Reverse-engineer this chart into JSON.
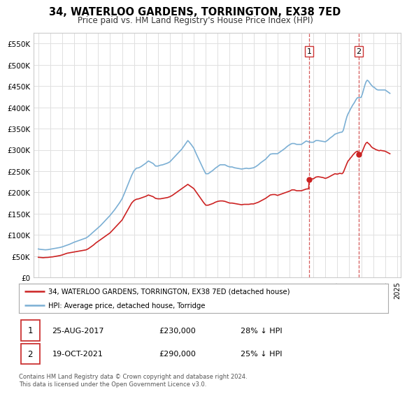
{
  "title": "34, WATERLOO GARDENS, TORRINGTON, EX38 7ED",
  "subtitle": "Price paid vs. HM Land Registry's House Price Index (HPI)",
  "hpi_color": "#7bafd4",
  "price_color": "#cc2222",
  "vline_color": "#cc3333",
  "background_color": "#ffffff",
  "grid_color": "#e0e0e0",
  "ylim": [
    0,
    575000
  ],
  "yticks": [
    0,
    50000,
    100000,
    150000,
    200000,
    250000,
    300000,
    350000,
    400000,
    450000,
    500000,
    550000
  ],
  "ytick_labels": [
    "£0",
    "£50K",
    "£100K",
    "£150K",
    "£200K",
    "£250K",
    "£300K",
    "£350K",
    "£400K",
    "£450K",
    "£500K",
    "£550K"
  ],
  "legend_line1": "34, WATERLOO GARDENS, TORRINGTON, EX38 7ED (detached house)",
  "legend_line2": "HPI: Average price, detached house, Torridge",
  "sale1_label": "1",
  "sale1_date": "25-AUG-2017",
  "sale1_price": "£230,000",
  "sale1_pct": "28% ↓ HPI",
  "sale1_x": 2017.65,
  "sale1_y": 230000,
  "sale2_label": "2",
  "sale2_date": "19-OCT-2021",
  "sale2_price": "£290,000",
  "sale2_pct": "25% ↓ HPI",
  "sale2_x": 2021.8,
  "sale2_y": 290000,
  "copyright_text": "Contains HM Land Registry data © Crown copyright and database right 2024.\nThis data is licensed under the Open Government Licence v3.0.",
  "xlim_left": 1994.6,
  "xlim_right": 2025.3,
  "xtick_years": [
    1995,
    1996,
    1997,
    1998,
    1999,
    2000,
    2001,
    2002,
    2003,
    2004,
    2005,
    2006,
    2007,
    2008,
    2009,
    2010,
    2011,
    2012,
    2013,
    2014,
    2015,
    2016,
    2017,
    2018,
    2019,
    2020,
    2021,
    2022,
    2023,
    2024,
    2025
  ],
  "hpi_data": [
    [
      1995.0,
      67000
    ],
    [
      1995.2,
      66000
    ],
    [
      1995.4,
      65500
    ],
    [
      1995.6,
      65000
    ],
    [
      1995.8,
      65500
    ],
    [
      1996.0,
      66500
    ],
    [
      1996.2,
      67500
    ],
    [
      1996.4,
      68500
    ],
    [
      1996.6,
      69500
    ],
    [
      1996.8,
      70500
    ],
    [
      1997.0,
      72000
    ],
    [
      1997.2,
      74000
    ],
    [
      1997.4,
      76000
    ],
    [
      1997.6,
      78000
    ],
    [
      1997.8,
      80500
    ],
    [
      1998.0,
      83000
    ],
    [
      1998.2,
      85000
    ],
    [
      1998.4,
      87000
    ],
    [
      1998.6,
      89000
    ],
    [
      1998.8,
      91000
    ],
    [
      1999.0,
      93000
    ],
    [
      1999.2,
      97000
    ],
    [
      1999.4,
      102000
    ],
    [
      1999.6,
      107000
    ],
    [
      1999.8,
      112000
    ],
    [
      2000.0,
      117000
    ],
    [
      2000.2,
      122000
    ],
    [
      2000.4,
      128000
    ],
    [
      2000.6,
      134000
    ],
    [
      2000.8,
      140000
    ],
    [
      2001.0,
      146000
    ],
    [
      2001.2,
      153000
    ],
    [
      2001.4,
      160000
    ],
    [
      2001.6,
      168000
    ],
    [
      2001.8,
      176000
    ],
    [
      2002.0,
      185000
    ],
    [
      2002.2,
      198000
    ],
    [
      2002.4,
      212000
    ],
    [
      2002.6,
      226000
    ],
    [
      2002.8,
      240000
    ],
    [
      2003.0,
      251000
    ],
    [
      2003.2,
      257000
    ],
    [
      2003.4,
      258000
    ],
    [
      2003.6,
      261000
    ],
    [
      2003.8,
      265000
    ],
    [
      2004.0,
      269000
    ],
    [
      2004.2,
      274000
    ],
    [
      2004.4,
      271000
    ],
    [
      2004.6,
      268000
    ],
    [
      2004.8,
      262000
    ],
    [
      2005.0,
      262000
    ],
    [
      2005.2,
      264000
    ],
    [
      2005.4,
      265000
    ],
    [
      2005.6,
      267000
    ],
    [
      2005.8,
      269000
    ],
    [
      2006.0,
      272000
    ],
    [
      2006.2,
      278000
    ],
    [
      2006.4,
      284000
    ],
    [
      2006.6,
      290000
    ],
    [
      2006.8,
      296000
    ],
    [
      2007.0,
      302000
    ],
    [
      2007.2,
      310000
    ],
    [
      2007.4,
      318000
    ],
    [
      2007.5,
      322000
    ],
    [
      2007.6,
      319000
    ],
    [
      2007.8,
      312000
    ],
    [
      2008.0,
      304000
    ],
    [
      2008.2,
      291000
    ],
    [
      2008.4,
      279000
    ],
    [
      2008.6,
      267000
    ],
    [
      2008.8,
      255000
    ],
    [
      2009.0,
      244000
    ],
    [
      2009.2,
      244000
    ],
    [
      2009.4,
      248000
    ],
    [
      2009.6,
      252000
    ],
    [
      2009.8,
      257000
    ],
    [
      2010.0,
      261000
    ],
    [
      2010.2,
      265000
    ],
    [
      2010.4,
      265000
    ],
    [
      2010.6,
      265000
    ],
    [
      2010.8,
      262000
    ],
    [
      2011.0,
      260000
    ],
    [
      2011.2,
      260000
    ],
    [
      2011.4,
      258000
    ],
    [
      2011.6,
      257000
    ],
    [
      2011.8,
      256000
    ],
    [
      2012.0,
      255000
    ],
    [
      2012.2,
      256000
    ],
    [
      2012.4,
      257000
    ],
    [
      2012.6,
      256000
    ],
    [
      2012.8,
      257000
    ],
    [
      2013.0,
      258000
    ],
    [
      2013.2,
      261000
    ],
    [
      2013.4,
      265000
    ],
    [
      2013.6,
      270000
    ],
    [
      2013.8,
      274000
    ],
    [
      2014.0,
      278000
    ],
    [
      2014.2,
      284000
    ],
    [
      2014.4,
      290000
    ],
    [
      2014.6,
      291000
    ],
    [
      2014.8,
      291000
    ],
    [
      2015.0,
      291000
    ],
    [
      2015.2,
      295000
    ],
    [
      2015.4,
      299000
    ],
    [
      2015.6,
      303000
    ],
    [
      2015.8,
      308000
    ],
    [
      2016.0,
      312000
    ],
    [
      2016.2,
      315000
    ],
    [
      2016.4,
      315000
    ],
    [
      2016.6,
      313000
    ],
    [
      2016.8,
      313000
    ],
    [
      2017.0,
      313000
    ],
    [
      2017.2,
      317000
    ],
    [
      2017.4,
      321000
    ],
    [
      2017.6,
      319000
    ],
    [
      2017.8,
      318000
    ],
    [
      2018.0,
      318000
    ],
    [
      2018.2,
      322000
    ],
    [
      2018.4,
      322000
    ],
    [
      2018.6,
      321000
    ],
    [
      2018.8,
      320000
    ],
    [
      2019.0,
      319000
    ],
    [
      2019.2,
      323000
    ],
    [
      2019.4,
      328000
    ],
    [
      2019.6,
      332000
    ],
    [
      2019.8,
      337000
    ],
    [
      2020.0,
      339000
    ],
    [
      2020.2,
      341000
    ],
    [
      2020.4,
      342000
    ],
    [
      2020.5,
      346000
    ],
    [
      2020.6,
      357000
    ],
    [
      2020.7,
      368000
    ],
    [
      2020.8,
      378000
    ],
    [
      2020.9,
      385000
    ],
    [
      2021.0,
      390000
    ],
    [
      2021.1,
      396000
    ],
    [
      2021.2,
      401000
    ],
    [
      2021.3,
      406000
    ],
    [
      2021.4,
      410000
    ],
    [
      2021.5,
      415000
    ],
    [
      2021.6,
      420000
    ],
    [
      2021.7,
      423000
    ],
    [
      2021.8,
      423000
    ],
    [
      2021.9,
      423000
    ],
    [
      2022.0,
      424000
    ],
    [
      2022.1,
      432000
    ],
    [
      2022.2,
      442000
    ],
    [
      2022.3,
      452000
    ],
    [
      2022.4,
      460000
    ],
    [
      2022.5,
      464000
    ],
    [
      2022.6,
      462000
    ],
    [
      2022.7,
      458000
    ],
    [
      2022.8,
      454000
    ],
    [
      2022.9,
      451000
    ],
    [
      2023.0,
      448000
    ],
    [
      2023.1,
      447000
    ],
    [
      2023.2,
      444000
    ],
    [
      2023.3,
      442000
    ],
    [
      2023.4,
      441000
    ],
    [
      2023.5,
      441000
    ],
    [
      2023.6,
      441000
    ],
    [
      2023.8,
      441000
    ],
    [
      2024.0,
      441000
    ],
    [
      2024.2,
      437000
    ],
    [
      2024.4,
      433000
    ]
  ],
  "price_data": [
    [
      1995.0,
      47500
    ],
    [
      1995.2,
      47000
    ],
    [
      1995.4,
      46500
    ],
    [
      1995.6,
      47000
    ],
    [
      1995.8,
      47200
    ],
    [
      1996.0,
      48000
    ],
    [
      1996.2,
      48500
    ],
    [
      1996.4,
      49500
    ],
    [
      1996.6,
      50500
    ],
    [
      1996.8,
      51500
    ],
    [
      1997.0,
      53000
    ],
    [
      1997.2,
      55000
    ],
    [
      1997.4,
      57000
    ],
    [
      1997.6,
      58000
    ],
    [
      1997.8,
      59000
    ],
    [
      1998.0,
      60000
    ],
    [
      1998.2,
      61000
    ],
    [
      1998.4,
      62000
    ],
    [
      1998.6,
      63000
    ],
    [
      1998.8,
      64000
    ],
    [
      1999.0,
      65000
    ],
    [
      1999.2,
      68000
    ],
    [
      1999.4,
      72000
    ],
    [
      1999.6,
      76000
    ],
    [
      1999.8,
      81000
    ],
    [
      2000.0,
      85000
    ],
    [
      2000.2,
      89000
    ],
    [
      2000.4,
      93000
    ],
    [
      2000.6,
      97000
    ],
    [
      2000.8,
      101000
    ],
    [
      2001.0,
      105000
    ],
    [
      2001.2,
      111000
    ],
    [
      2001.4,
      117000
    ],
    [
      2001.6,
      123000
    ],
    [
      2001.8,
      129000
    ],
    [
      2002.0,
      135000
    ],
    [
      2002.2,
      145000
    ],
    [
      2002.4,
      155000
    ],
    [
      2002.6,
      165000
    ],
    [
      2002.8,
      175000
    ],
    [
      2003.0,
      181000
    ],
    [
      2003.2,
      184000
    ],
    [
      2003.4,
      185000
    ],
    [
      2003.6,
      187000
    ],
    [
      2003.8,
      189000
    ],
    [
      2004.0,
      191000
    ],
    [
      2004.2,
      194000
    ],
    [
      2004.4,
      192000
    ],
    [
      2004.6,
      190000
    ],
    [
      2004.8,
      186000
    ],
    [
      2005.0,
      185000
    ],
    [
      2005.2,
      185000
    ],
    [
      2005.4,
      186000
    ],
    [
      2005.6,
      187000
    ],
    [
      2005.8,
      188000
    ],
    [
      2006.0,
      190000
    ],
    [
      2006.2,
      193000
    ],
    [
      2006.4,
      197000
    ],
    [
      2006.6,
      201000
    ],
    [
      2006.8,
      205000
    ],
    [
      2007.0,
      209000
    ],
    [
      2007.2,
      213000
    ],
    [
      2007.4,
      217000
    ],
    [
      2007.5,
      219000
    ],
    [
      2007.6,
      217000
    ],
    [
      2007.8,
      213000
    ],
    [
      2008.0,
      209000
    ],
    [
      2008.2,
      201000
    ],
    [
      2008.4,
      193000
    ],
    [
      2008.6,
      185000
    ],
    [
      2008.8,
      177000
    ],
    [
      2009.0,
      170000
    ],
    [
      2009.2,
      170000
    ],
    [
      2009.4,
      172000
    ],
    [
      2009.6,
      174000
    ],
    [
      2009.8,
      177000
    ],
    [
      2010.0,
      179000
    ],
    [
      2010.2,
      180000
    ],
    [
      2010.4,
      180000
    ],
    [
      2010.6,
      179000
    ],
    [
      2010.8,
      177000
    ],
    [
      2011.0,
      175000
    ],
    [
      2011.2,
      175000
    ],
    [
      2011.4,
      174000
    ],
    [
      2011.6,
      173000
    ],
    [
      2011.8,
      172000
    ],
    [
      2012.0,
      171000
    ],
    [
      2012.2,
      172000
    ],
    [
      2012.4,
      172000
    ],
    [
      2012.6,
      172000
    ],
    [
      2012.8,
      173000
    ],
    [
      2013.0,
      173000
    ],
    [
      2013.2,
      175000
    ],
    [
      2013.4,
      177000
    ],
    [
      2013.6,
      180000
    ],
    [
      2013.8,
      183000
    ],
    [
      2014.0,
      186000
    ],
    [
      2014.2,
      190000
    ],
    [
      2014.4,
      194000
    ],
    [
      2014.6,
      195000
    ],
    [
      2014.8,
      195000
    ],
    [
      2015.0,
      193000
    ],
    [
      2015.2,
      195000
    ],
    [
      2015.4,
      197000
    ],
    [
      2015.6,
      199000
    ],
    [
      2015.8,
      201000
    ],
    [
      2016.0,
      203000
    ],
    [
      2016.2,
      206000
    ],
    [
      2016.4,
      206000
    ],
    [
      2016.6,
      204000
    ],
    [
      2016.8,
      204000
    ],
    [
      2017.0,
      204000
    ],
    [
      2017.2,
      206000
    ],
    [
      2017.4,
      208000
    ],
    [
      2017.6,
      208500
    ],
    [
      2017.65,
      230000
    ],
    [
      2017.8,
      231000
    ],
    [
      2017.9,
      232000
    ],
    [
      2018.0,
      232000
    ],
    [
      2018.2,
      236000
    ],
    [
      2018.4,
      237000
    ],
    [
      2018.6,
      236000
    ],
    [
      2018.8,
      235000
    ],
    [
      2019.0,
      233000
    ],
    [
      2019.2,
      235000
    ],
    [
      2019.4,
      238000
    ],
    [
      2019.6,
      241000
    ],
    [
      2019.8,
      244000
    ],
    [
      2020.0,
      243000
    ],
    [
      2020.2,
      245000
    ],
    [
      2020.4,
      244000
    ],
    [
      2020.5,
      247000
    ],
    [
      2020.6,
      254000
    ],
    [
      2020.7,
      261000
    ],
    [
      2020.8,
      268000
    ],
    [
      2020.9,
      274000
    ],
    [
      2021.0,
      277000
    ],
    [
      2021.1,
      281000
    ],
    [
      2021.2,
      284000
    ],
    [
      2021.3,
      288000
    ],
    [
      2021.4,
      291000
    ],
    [
      2021.5,
      294000
    ],
    [
      2021.6,
      296000
    ],
    [
      2021.7,
      297000
    ],
    [
      2021.8,
      290000
    ],
    [
      2021.9,
      291000
    ],
    [
      2022.0,
      291000
    ],
    [
      2022.1,
      297000
    ],
    [
      2022.2,
      304000
    ],
    [
      2022.3,
      311000
    ],
    [
      2022.4,
      316000
    ],
    [
      2022.5,
      318000
    ],
    [
      2022.6,
      315000
    ],
    [
      2022.7,
      313000
    ],
    [
      2022.8,
      309000
    ],
    [
      2022.9,
      306000
    ],
    [
      2023.0,
      304000
    ],
    [
      2023.1,
      303000
    ],
    [
      2023.2,
      301000
    ],
    [
      2023.3,
      300000
    ],
    [
      2023.4,
      299000
    ],
    [
      2023.5,
      298000
    ],
    [
      2023.6,
      299000
    ],
    [
      2023.8,
      298000
    ],
    [
      2024.0,
      297000
    ],
    [
      2024.2,
      294000
    ],
    [
      2024.4,
      291000
    ]
  ]
}
